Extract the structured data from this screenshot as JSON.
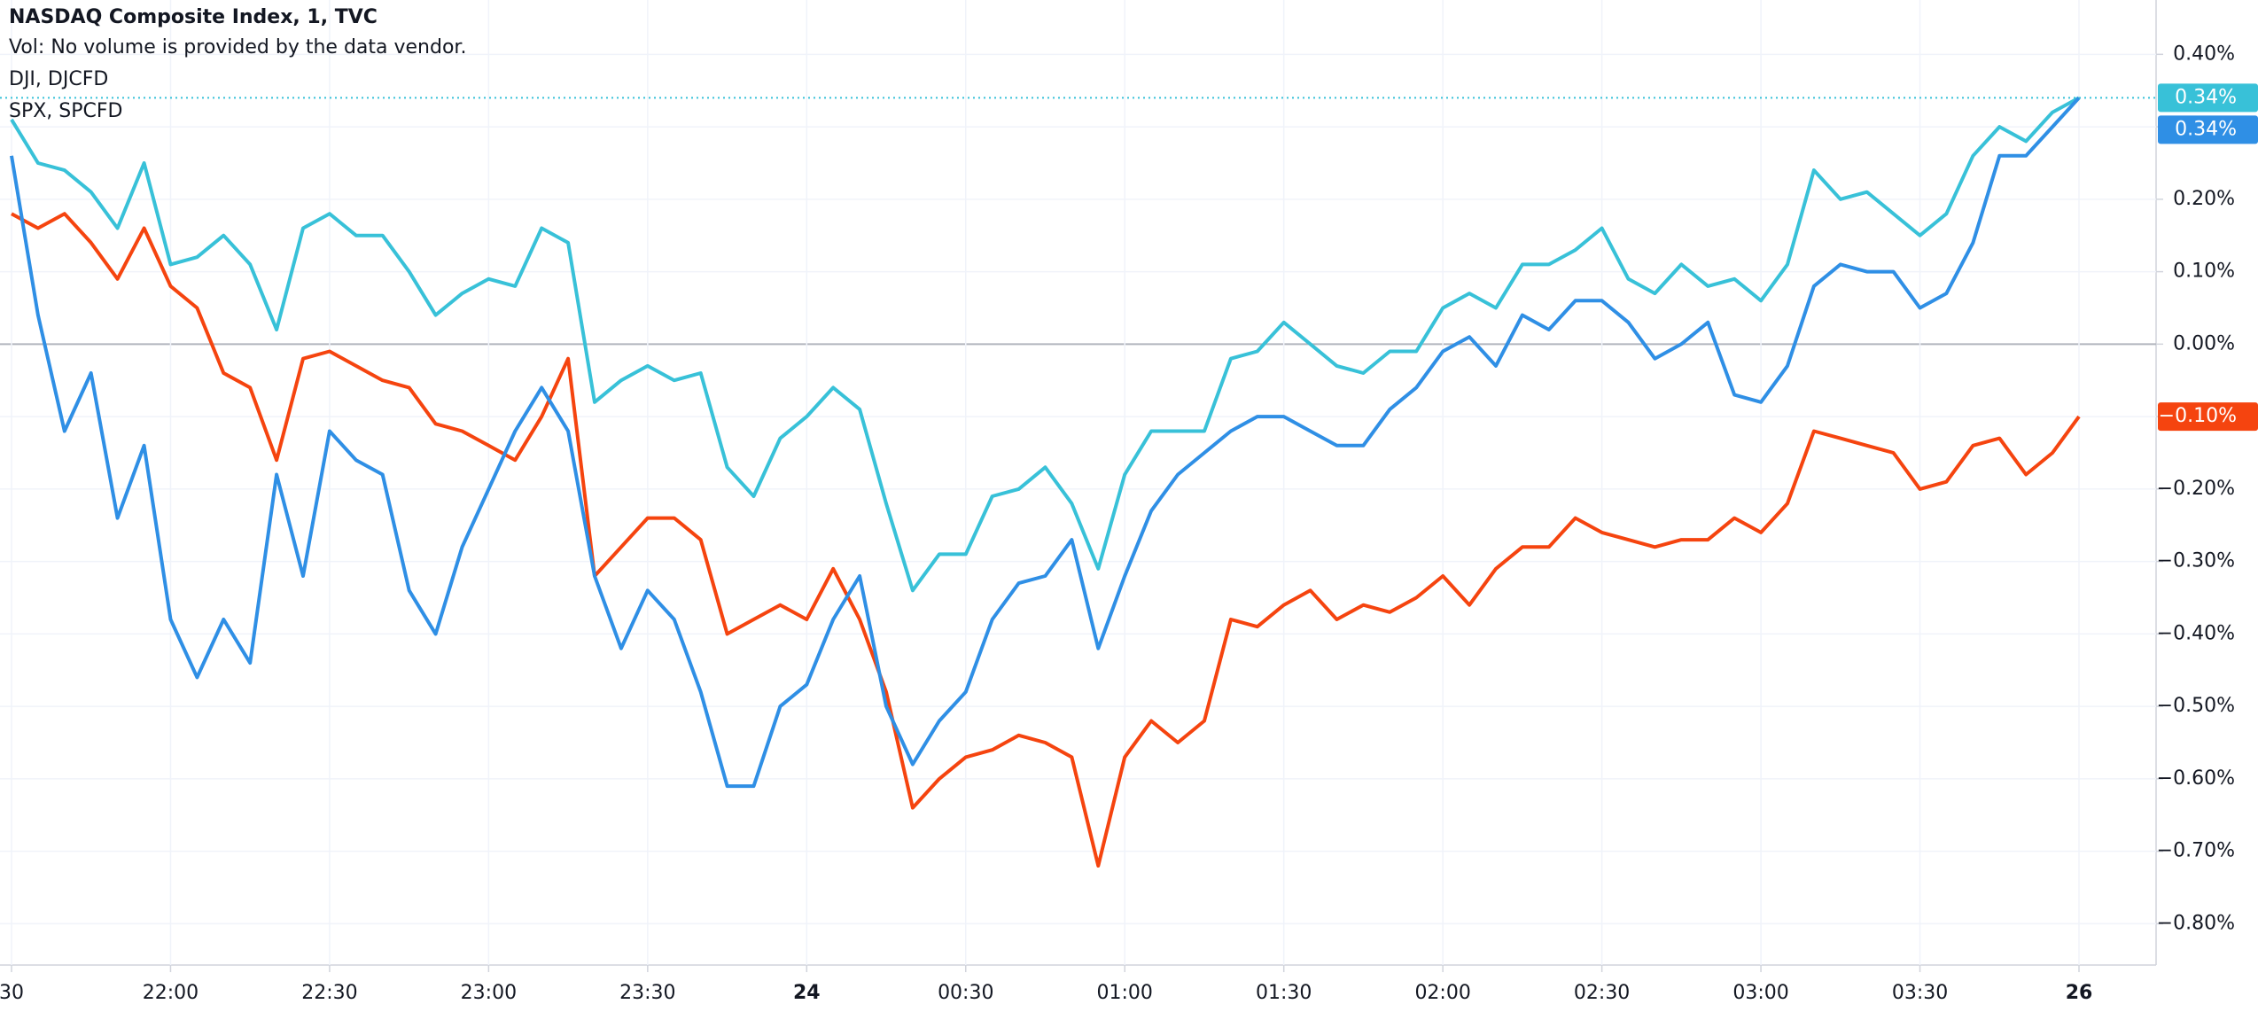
{
  "chart_data": {
    "type": "line",
    "subtitle": "Vol: No volume is provided by the data vendor.",
    "categories": [
      "30",
      null,
      null,
      null,
      null,
      null,
      "22:00",
      null,
      null,
      null,
      null,
      null,
      "22:30",
      null,
      null,
      null,
      null,
      null,
      "23:00",
      null,
      null,
      null,
      null,
      null,
      "23:30",
      null,
      null,
      null,
      null,
      null,
      "24",
      null,
      null,
      null,
      null,
      null,
      "00:30",
      null,
      null,
      null,
      null,
      null,
      "01:00",
      null,
      null,
      null,
      null,
      null,
      "01:30",
      null,
      null,
      null,
      null,
      null,
      "02:00",
      null,
      null,
      null,
      null,
      null,
      "02:30",
      null,
      null,
      null,
      null,
      null,
      "03:00",
      null,
      null,
      null,
      null,
      null,
      "03:30",
      null,
      null,
      null,
      null,
      null,
      "26"
    ],
    "bold_categories": [
      "24",
      "26"
    ],
    "series": [
      {
        "name": "NASDAQ Composite Index, 1, TVC",
        "color": "#38c1d8",
        "last_label": "0.34%",
        "values": [
          0.31,
          0.25,
          0.24,
          0.21,
          0.16,
          0.25,
          0.11,
          0.12,
          0.15,
          0.11,
          0.02,
          0.16,
          0.18,
          0.15,
          0.15,
          0.1,
          0.04,
          0.07,
          0.09,
          0.08,
          0.16,
          0.14,
          -0.08,
          -0.05,
          -0.03,
          -0.05,
          -0.04,
          -0.17,
          -0.21,
          -0.13,
          -0.1,
          -0.06,
          -0.09,
          -0.22,
          -0.34,
          -0.29,
          -0.29,
          -0.21,
          -0.2,
          -0.17,
          -0.22,
          -0.31,
          -0.18,
          -0.12,
          -0.12,
          -0.12,
          -0.02,
          -0.01,
          0.03,
          0.0,
          -0.03,
          -0.04,
          -0.01,
          -0.01,
          0.05,
          0.07,
          0.05,
          0.11,
          0.11,
          0.13,
          0.16,
          0.09,
          0.07,
          0.11,
          0.08,
          0.09,
          0.06,
          0.11,
          0.24,
          0.2,
          0.21,
          0.18,
          0.15,
          0.18,
          0.26,
          0.3,
          0.28,
          0.32,
          0.34
        ]
      },
      {
        "name": "DJI, DJCFD",
        "color": "#f5440f",
        "last_label": "−0.10%",
        "values": [
          0.18,
          0.16,
          0.18,
          0.14,
          0.09,
          0.16,
          0.08,
          0.05,
          -0.04,
          -0.06,
          -0.16,
          -0.02,
          -0.01,
          -0.03,
          -0.05,
          -0.06,
          -0.11,
          -0.12,
          -0.14,
          -0.16,
          -0.1,
          -0.02,
          -0.32,
          -0.28,
          -0.24,
          -0.24,
          -0.27,
          -0.4,
          -0.38,
          -0.36,
          -0.38,
          -0.31,
          -0.38,
          -0.48,
          -0.64,
          -0.6,
          -0.57,
          -0.56,
          -0.54,
          -0.55,
          -0.57,
          -0.72,
          -0.57,
          -0.52,
          -0.55,
          -0.52,
          -0.38,
          -0.39,
          -0.36,
          -0.34,
          -0.38,
          -0.36,
          -0.37,
          -0.35,
          -0.32,
          -0.36,
          -0.31,
          -0.28,
          -0.28,
          -0.24,
          -0.26,
          -0.27,
          -0.28,
          -0.27,
          -0.27,
          -0.24,
          -0.26,
          -0.22,
          -0.12,
          -0.13,
          -0.14,
          -0.15,
          -0.2,
          -0.19,
          -0.14,
          -0.13,
          -0.18,
          -0.15,
          -0.1
        ]
      },
      {
        "name": "SPX, SPCFD",
        "color": "#2f8fe5",
        "last_label": "0.34%",
        "values": [
          0.26,
          0.04,
          -0.12,
          -0.04,
          -0.24,
          -0.14,
          -0.38,
          -0.46,
          -0.38,
          -0.44,
          -0.18,
          -0.32,
          -0.12,
          -0.16,
          -0.18,
          -0.34,
          -0.4,
          -0.28,
          -0.2,
          -0.12,
          -0.06,
          -0.12,
          -0.32,
          -0.42,
          -0.34,
          -0.38,
          -0.48,
          -0.61,
          -0.61,
          -0.5,
          -0.47,
          -0.38,
          -0.32,
          -0.5,
          -0.58,
          -0.52,
          -0.48,
          -0.38,
          -0.33,
          -0.32,
          -0.27,
          -0.42,
          -0.32,
          -0.23,
          -0.18,
          -0.15,
          -0.12,
          -0.1,
          -0.1,
          -0.12,
          -0.14,
          -0.14,
          -0.09,
          -0.06,
          -0.01,
          0.01,
          -0.03,
          0.04,
          0.02,
          0.06,
          0.06,
          0.03,
          -0.02,
          0.0,
          0.03,
          -0.07,
          -0.08,
          -0.03,
          0.08,
          0.11,
          0.1,
          0.1,
          0.05,
          0.07,
          0.14,
          0.26,
          0.26,
          0.3,
          0.34
        ]
      }
    ],
    "ylim": [
      -0.857,
      0.475
    ],
    "yticks": [
      {
        "value": 0.4,
        "label": "0.40%"
      },
      {
        "value": 0.3,
        "label": "0.30%"
      },
      {
        "value": 0.2,
        "label": "0.20%"
      },
      {
        "value": 0.1,
        "label": "0.10%"
      },
      {
        "value": 0,
        "label": "0.00%"
      },
      {
        "value": -0.1,
        "label": "−0.10%"
      },
      {
        "value": -0.2,
        "label": "−0.20%"
      },
      {
        "value": -0.3,
        "label": "−0.30%"
      },
      {
        "value": -0.4,
        "label": "−0.40%"
      },
      {
        "value": -0.5,
        "label": "−0.50%"
      },
      {
        "value": -0.6,
        "label": "−0.60%"
      },
      {
        "value": -0.7,
        "label": "−0.70%"
      },
      {
        "value": -0.8,
        "label": "−0.80%"
      }
    ],
    "grid": true
  }
}
